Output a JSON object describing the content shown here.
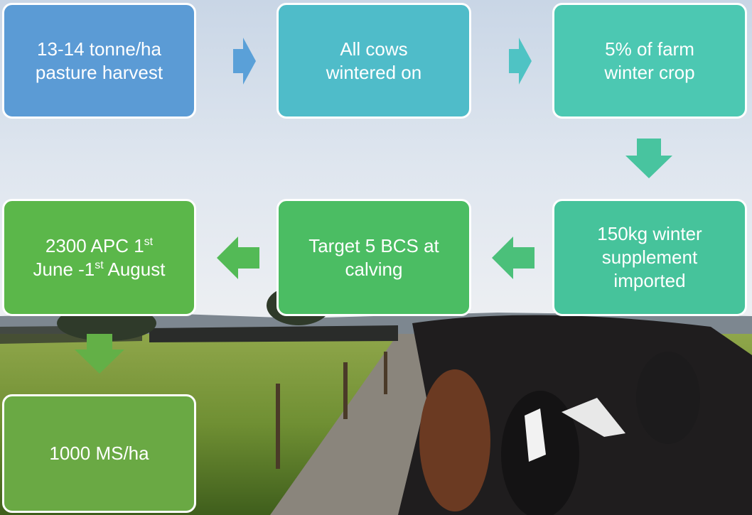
{
  "nodes": [
    {
      "lines": [
        "13-14 tonne/ha",
        "pasture harvest"
      ]
    },
    {
      "lines": [
        "All cows",
        "wintered on"
      ]
    },
    {
      "lines": [
        "5% of farm",
        "winter crop"
      ]
    },
    {
      "lines": [
        "150kg winter",
        "supplement",
        "imported"
      ]
    },
    {
      "lines": [
        "Target 5 BCS at",
        "calving"
      ]
    },
    {
      "lines": [
        [
          {
            "text": "2300 APC 1"
          },
          {
            "sup": "st"
          }
        ],
        [
          {
            "text": "June -1"
          },
          {
            "sup": "st"
          },
          {
            "text": " August"
          }
        ]
      ]
    },
    {
      "lines": [
        "1000 MS/ha"
      ]
    }
  ]
}
